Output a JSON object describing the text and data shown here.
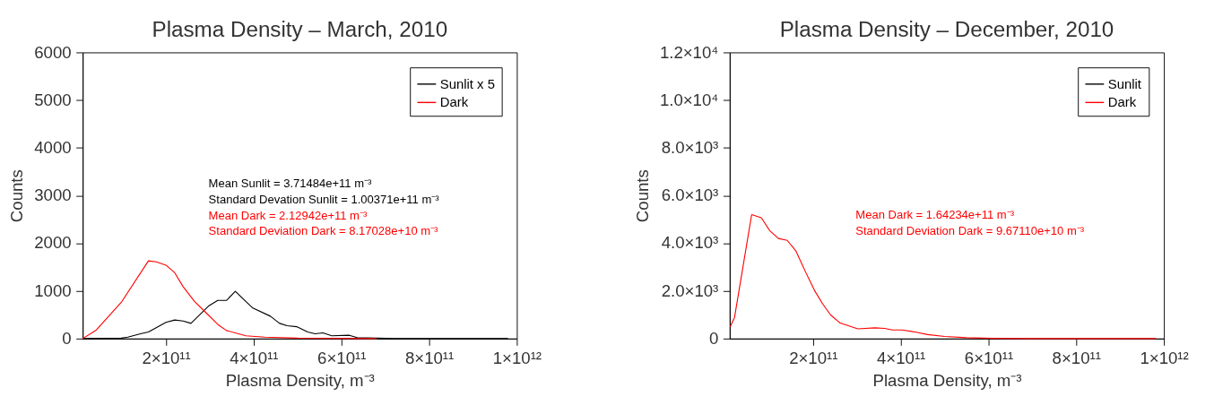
{
  "chart_data": [
    {
      "type": "line",
      "title": "Plasma Density – March, 2010",
      "xlabel": "Plasma Density, m⁻³",
      "ylabel": "Counts",
      "xlim": [
        10000000000.0,
        1000000000000.0
      ],
      "xticks": [
        {
          "value": 200000000000.0,
          "label": "2×10¹¹"
        },
        {
          "value": 400000000000.0,
          "label": "4×10¹¹"
        },
        {
          "value": 600000000000.0,
          "label": "6×10¹¹"
        },
        {
          "value": 800000000000.0,
          "label": "8×10¹¹"
        },
        {
          "value": 1000000000000.0,
          "label": "1×10¹²"
        }
      ],
      "ylim": [
        0,
        6000
      ],
      "yticks": [
        0,
        1000,
        2000,
        3000,
        4000,
        5000,
        6000
      ],
      "legend": "top right",
      "grid": false,
      "series": [
        {
          "name": "Sunlit x 5",
          "color": "#000000",
          "x": [
            10000000000.0,
            98000000000.0,
            113000000000.0,
            142000000000.0,
            160000000000.0,
            200000000000.0,
            220000000000.0,
            239000000000.0,
            257000000000.0,
            298000000000.0,
            318000000000.0,
            338000000000.0,
            358000000000.0,
            398000000000.0,
            438000000000.0,
            459000000000.0,
            476000000000.0,
            498000000000.0,
            523000000000.0,
            540000000000.0,
            558000000000.0,
            578000000000.0,
            618000000000.0,
            636000000000.0,
            680000000000.0,
            720000000000.0,
            980000000000.0
          ],
          "values": [
            0,
            10,
            30,
            100,
            140,
            340,
            390,
            370,
            320,
            690,
            800,
            800,
            990,
            640,
            470,
            320,
            270,
            250,
            140,
            100,
            120,
            60,
            70,
            20,
            10,
            0,
            0
          ]
        },
        {
          "name": "Dark",
          "color": "#ff0000",
          "x": [
            10000000000.0,
            40000000000.0,
            98000000000.0,
            160000000000.0,
            178000000000.0,
            200000000000.0,
            220000000000.0,
            239000000000.0,
            265000000000.0,
            295000000000.0,
            319000000000.0,
            338000000000.0,
            382000000000.0,
            425000000000.0,
            500000000000.0,
            680000000000.0
          ],
          "values": [
            0,
            170,
            760,
            1630,
            1610,
            1540,
            1380,
            1090,
            780,
            510,
            290,
            170,
            60,
            30,
            10,
            0
          ]
        }
      ],
      "annotations": [
        "Mean Sunlit = 3.71484e+11 m⁻³",
        "Standard Devation Sunlit = 1.00371e+11 m⁻³",
        "Mean Dark = 2.12942e+11 m⁻³",
        "Standard Deviation Dark = 8.17028e+10 m⁻³"
      ]
    },
    {
      "type": "line",
      "title": "Plasma Density – December, 2010",
      "xlabel": "Plasma Density, m⁻³",
      "ylabel": "Counts",
      "xlim": [
        10000000000.0,
        1000000000000.0
      ],
      "xticks": [
        {
          "value": 200000000000.0,
          "label": "2×10¹¹"
        },
        {
          "value": 400000000000.0,
          "label": "4×10¹¹"
        },
        {
          "value": 600000000000.0,
          "label": "6×10¹¹"
        },
        {
          "value": 800000000000.0,
          "label": "8×10¹¹"
        },
        {
          "value": 1000000000000.0,
          "label": "1×10¹²"
        }
      ],
      "ylim": [
        0,
        12000
      ],
      "yticks": [
        0,
        {
          "value": 2000,
          "label": "2.0×10³"
        },
        {
          "value": 4000,
          "label": "4.0×10³"
        },
        {
          "value": 6000,
          "label": "6.0×10³"
        },
        {
          "value": 8000,
          "label": "8.0×10³"
        },
        {
          "value": 10000,
          "label": "1.0×10⁴"
        },
        {
          "value": 12000,
          "label": "1.2×10⁴"
        }
      ],
      "legend": "top right",
      "grid": false,
      "series": [
        {
          "name": "Sunlit",
          "color": "#000000"
        },
        {
          "name": "Dark",
          "color": "#ff0000",
          "x": [
            11000000000.0,
            21000000000.0,
            60000000000.0,
            82000000000.0,
            101000000000.0,
            121000000000.0,
            141000000000.0,
            161000000000.0,
            183000000000.0,
            203000000000.0,
            222000000000.0,
            240000000000.0,
            262000000000.0,
            302000000000.0,
            341000000000.0,
            363000000000.0,
            381000000000.0,
            403000000000.0,
            435000000000.0,
            461000000000.0,
            500000000000.0,
            550000000000.0,
            608000000000.0,
            694000000000.0,
            982000000000.0
          ],
          "values": [
            490,
            890,
            5200,
            5070,
            4530,
            4200,
            4120,
            3670,
            2790,
            2030,
            1450,
            990,
            650,
            410,
            450,
            430,
            360,
            360,
            270,
            170,
            90,
            40,
            10,
            0,
            0
          ]
        }
      ],
      "annotations": [
        "Mean Dark = 1.64234e+11 m⁻³",
        "Standard Deviation Dark = 9.67110e+10 m⁻³"
      ]
    }
  ]
}
